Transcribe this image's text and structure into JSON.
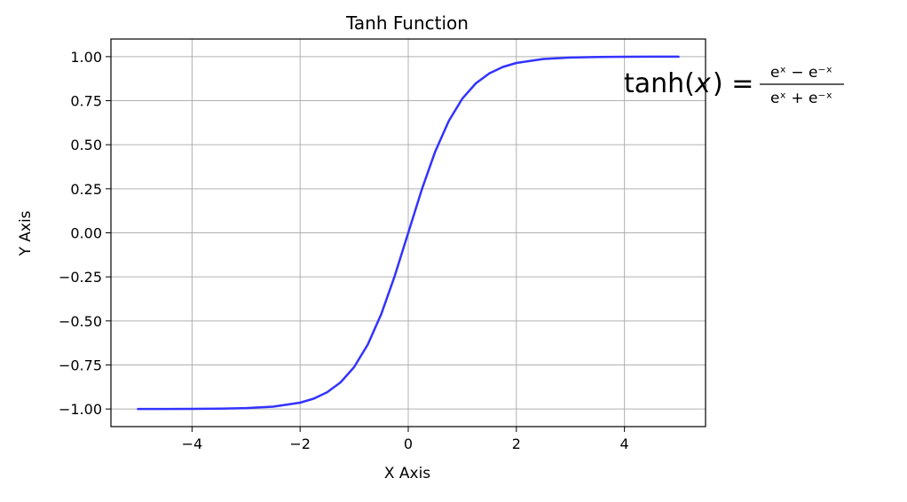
{
  "chart_data": {
    "type": "line",
    "title": "Tanh Function",
    "xlabel": "X Axis",
    "ylabel": "Y Axis",
    "xlim": [
      -5.5,
      5.5
    ],
    "ylim": [
      -1.1,
      1.1
    ],
    "grid": true,
    "x_ticks": [
      -4,
      -2,
      0,
      2,
      4
    ],
    "x_tick_labels": [
      "−4",
      "−2",
      "0",
      "2",
      "4"
    ],
    "y_ticks": [
      1.0,
      0.75,
      0.5,
      0.25,
      0.0,
      -0.25,
      -0.5,
      -0.75,
      -1.0
    ],
    "y_tick_labels": [
      "1.00",
      "0.75",
      "0.50",
      "0.25",
      "0.00",
      "−0.25",
      "−0.50",
      "−0.75",
      "−1.00"
    ],
    "series": [
      {
        "function": "tanh",
        "color": "#3333ff",
        "x": [
          -5.0,
          -4.5,
          -4.0,
          -3.5,
          -3.0,
          -2.5,
          -2.0,
          -1.75,
          -1.5,
          -1.25,
          -1.0,
          -0.75,
          -0.5,
          -0.25,
          0.0,
          0.25,
          0.5,
          0.75,
          1.0,
          1.25,
          1.5,
          1.75,
          2.0,
          2.5,
          3.0,
          3.5,
          4.0,
          4.5,
          5.0
        ],
        "y": [
          -0.9999,
          -0.9998,
          -0.9993,
          -0.9982,
          -0.9951,
          -0.9866,
          -0.964,
          -0.9414,
          -0.9051,
          -0.8483,
          -0.7616,
          -0.6351,
          -0.4621,
          -0.2449,
          0.0,
          0.2449,
          0.4621,
          0.6351,
          0.7616,
          0.8483,
          0.9051,
          0.9414,
          0.964,
          0.9866,
          0.9951,
          0.9982,
          0.9993,
          0.9998,
          0.9999
        ]
      }
    ],
    "annotation": {
      "lhs": "tanh(",
      "var": "x",
      "rhs": ") =",
      "numerator": "eˣ − e⁻ˣ",
      "denominator": "eˣ + e⁻ˣ"
    }
  }
}
